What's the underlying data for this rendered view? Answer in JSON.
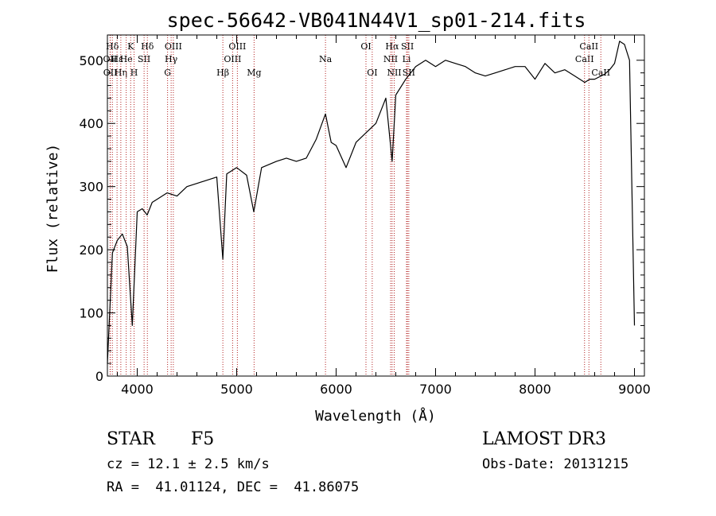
{
  "chart_data": {
    "type": "line",
    "title": "spec-56642-VB041N44V1_sp01-214.fits",
    "xlabel": "Wavelength (Å)",
    "ylabel": "Flux (relative)",
    "xlim": [
      3700,
      9100
    ],
    "ylim": [
      0,
      540
    ],
    "x_ticks": [
      4000,
      5000,
      6000,
      7000,
      8000,
      9000
    ],
    "y_ticks": [
      0,
      100,
      200,
      300,
      400,
      500
    ],
    "series": [
      {
        "name": "flux",
        "color": "#000000",
        "x": [
          3700,
          3750,
          3800,
          3850,
          3900,
          3950,
          4000,
          4050,
          4100,
          4150,
          4200,
          4300,
          4400,
          4500,
          4600,
          4700,
          4800,
          4861,
          4900,
          5000,
          5100,
          5172,
          5250,
          5400,
          5500,
          5600,
          5700,
          5800,
          5893,
          5950,
          6000,
          6100,
          6200,
          6300,
          6400,
          6500,
          6563,
          6600,
          6700,
          6800,
          6900,
          6950,
          7000,
          7100,
          7200,
          7300,
          7400,
          7500,
          7600,
          7700,
          7800,
          7900,
          8000,
          8100,
          8200,
          8300,
          8400,
          8500,
          8550,
          8600,
          8700,
          8750,
          8800,
          8850,
          8900,
          8950,
          9000
        ],
        "values": [
          20,
          195,
          215,
          225,
          205,
          80,
          260,
          265,
          255,
          275,
          280,
          290,
          285,
          300,
          305,
          310,
          315,
          185,
          320,
          330,
          318,
          260,
          330,
          340,
          345,
          340,
          345,
          375,
          415,
          370,
          365,
          330,
          370,
          385,
          400,
          440,
          340,
          445,
          470,
          490,
          500,
          495,
          490,
          500,
          495,
          490,
          480,
          475,
          480,
          485,
          490,
          490,
          470,
          495,
          480,
          485,
          475,
          465,
          470,
          470,
          478,
          485,
          495,
          530,
          525,
          500,
          80
        ]
      }
    ],
    "lines": [
      {
        "label": "Hδ",
        "wavelength": 3750,
        "row": 1
      },
      {
        "label": "OII",
        "wavelength": 3727,
        "row": 2
      },
      {
        "label": "OII",
        "wavelength": 3729,
        "row": 3
      },
      {
        "label": "Hε",
        "wavelength": 3797,
        "row": 2
      },
      {
        "label": "Hη",
        "wavelength": 3835,
        "row": 3
      },
      {
        "label": "He",
        "wavelength": 3889,
        "row": 2
      },
      {
        "label": "K",
        "wavelength": 3934,
        "row": 1
      },
      {
        "label": "H",
        "wavelength": 3968,
        "row": 3
      },
      {
        "label": "SII",
        "wavelength": 4069,
        "row": 2
      },
      {
        "label": "Hδ",
        "wavelength": 4102,
        "row": 1
      },
      {
        "label": "G",
        "wavelength": 4305,
        "row": 3
      },
      {
        "label": "OIII",
        "wavelength": 4363,
        "row": 1
      },
      {
        "label": "Hγ",
        "wavelength": 4341,
        "row": 2
      },
      {
        "label": "Hβ",
        "wavelength": 4861,
        "row": 3
      },
      {
        "label": "OIII",
        "wavelength": 4959,
        "row": 2
      },
      {
        "label": "OIII",
        "wavelength": 5007,
        "row": 1
      },
      {
        "label": "Mg",
        "wavelength": 5175,
        "row": 3
      },
      {
        "label": "Na",
        "wavelength": 5893,
        "row": 2
      },
      {
        "label": "OI",
        "wavelength": 6300,
        "row": 1
      },
      {
        "label": "OI",
        "wavelength": 6363,
        "row": 3
      },
      {
        "label": "NII",
        "wavelength": 6548,
        "row": 2
      },
      {
        "label": "Hα",
        "wavelength": 6563,
        "row": 1
      },
      {
        "label": "NII",
        "wavelength": 6584,
        "row": 3
      },
      {
        "label": "SII",
        "wavelength": 6717,
        "row": 1
      },
      {
        "label": "Li",
        "wavelength": 6708,
        "row": 2
      },
      {
        "label": "SII",
        "wavelength": 6731,
        "row": 3
      },
      {
        "label": "CaII",
        "wavelength": 8498,
        "row": 2
      },
      {
        "label": "CaII",
        "wavelength": 8542,
        "row": 1
      },
      {
        "label": "CaII",
        "wavelength": 8662,
        "row": 3
      }
    ]
  },
  "info": {
    "class_label": "STAR",
    "subclass": "F5",
    "cz": "cz = 12.1 ± 2.5 km/s",
    "coords": "RA =  41.01124, DEC =  41.86075",
    "survey": "LAMOST DR3",
    "obs_date": "Obs-Date: 20131215"
  }
}
